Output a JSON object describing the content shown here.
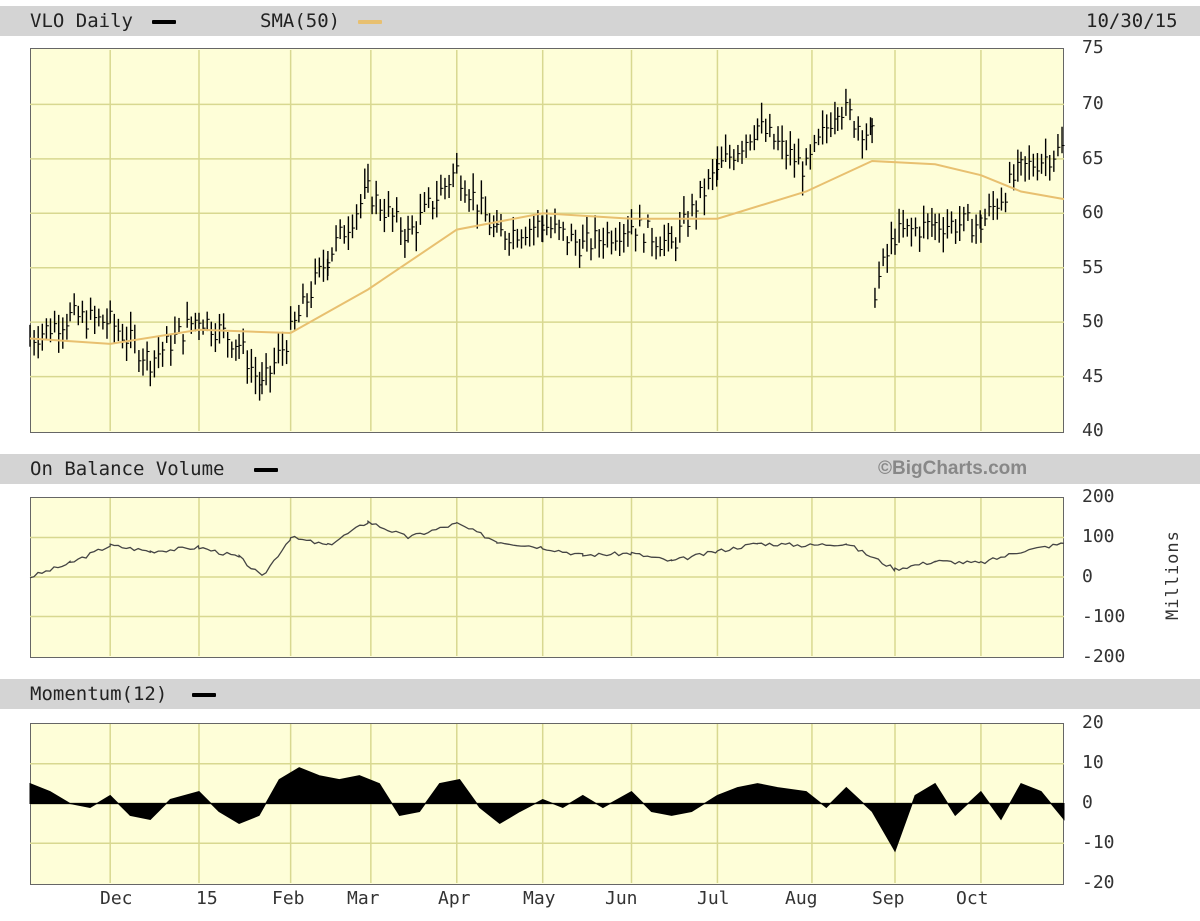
{
  "header": {
    "ticker_label": "VLO Daily",
    "sma_label": "SMA(50)",
    "date": "10/30/15",
    "colors": {
      "price": "#000000",
      "sma": "#e8c070"
    }
  },
  "obv_header": {
    "label": "On Balance Volume",
    "credit": "©BigCharts.com"
  },
  "momentum_header": {
    "label": "Momentum(12)"
  },
  "chart_data": [
    {
      "type": "line",
      "title": "VLO Daily",
      "subtype": "ohlc-bars",
      "ylim": [
        40,
        75
      ],
      "y_ticks": [
        "75",
        "70",
        "65",
        "60",
        "55",
        "50",
        "45",
        "40"
      ],
      "x_ticks": [
        "Dec",
        "15",
        "Feb",
        "Mar",
        "Apr",
        "May",
        "Jun",
        "Jul",
        "Aug",
        "Sep",
        "Oct"
      ],
      "grid": true,
      "series": [
        {
          "name": "VLO Daily",
          "x": [
            "2014-11-03",
            "2014-11-17",
            "2014-12-01",
            "2014-12-15",
            "2015-01-01",
            "2015-01-15",
            "2015-01-23",
            "2015-02-02",
            "2015-02-15",
            "2015-03-01",
            "2015-03-15",
            "2015-04-01",
            "2015-04-15",
            "2015-05-01",
            "2015-05-15",
            "2015-06-01",
            "2015-06-15",
            "2015-07-01",
            "2015-07-15",
            "2015-08-01",
            "2015-08-12",
            "2015-08-24",
            "2015-08-25",
            "2015-09-01",
            "2015-09-15",
            "2015-10-01",
            "2015-10-15",
            "2015-10-30"
          ],
          "values": [
            48.5,
            50.5,
            50,
            46.5,
            50.5,
            48,
            44,
            49,
            56,
            62,
            58,
            64,
            58,
            59,
            57,
            59,
            57,
            64,
            68,
            64,
            70,
            67,
            53,
            58,
            59,
            59,
            64,
            66
          ]
        },
        {
          "name": "SMA(50)",
          "x": [
            "2014-11-03",
            "2014-12-01",
            "2015-01-01",
            "2015-02-02",
            "2015-03-01",
            "2015-04-01",
            "2015-05-01",
            "2015-06-01",
            "2015-07-01",
            "2015-08-01",
            "2015-08-24",
            "2015-09-15",
            "2015-10-01",
            "2015-10-15",
            "2015-10-30"
          ],
          "values": [
            48.5,
            48,
            49.3,
            49,
            53,
            58.5,
            60,
            59.5,
            59.5,
            62,
            64.8,
            64.5,
            63.5,
            62,
            61.3
          ]
        }
      ]
    },
    {
      "type": "line",
      "title": "On Balance Volume",
      "ylim": [
        -200,
        200
      ],
      "y_ticks": [
        "200",
        "100",
        "0",
        "-100",
        "-200"
      ],
      "ylabel": "Millions",
      "grid": true,
      "series": [
        {
          "name": "On Balance Volume",
          "x": [
            "2014-11-03",
            "2014-11-17",
            "2014-12-01",
            "2014-12-15",
            "2015-01-01",
            "2015-01-15",
            "2015-01-23",
            "2015-02-02",
            "2015-02-15",
            "2015-03-01",
            "2015-03-15",
            "2015-04-01",
            "2015-04-15",
            "2015-05-01",
            "2015-05-15",
            "2015-06-01",
            "2015-06-15",
            "2015-07-01",
            "2015-07-15",
            "2015-08-01",
            "2015-08-15",
            "2015-09-01",
            "2015-09-15",
            "2015-10-01",
            "2015-10-15",
            "2015-10-30"
          ],
          "values": [
            0,
            35,
            80,
            65,
            75,
            50,
            0,
            100,
            80,
            140,
            100,
            135,
            90,
            75,
            55,
            60,
            40,
            65,
            85,
            80,
            85,
            20,
            40,
            35,
            65,
            85
          ]
        }
      ]
    },
    {
      "type": "area",
      "title": "Momentum(12)",
      "ylim": [
        -20,
        20
      ],
      "y_ticks": [
        "20",
        "10",
        "0",
        "-10",
        "-20"
      ],
      "grid": true,
      "series": [
        {
          "name": "Momentum(12)",
          "x": [
            "2014-11-03",
            "2014-11-10",
            "2014-11-17",
            "2014-11-24",
            "2014-12-01",
            "2014-12-08",
            "2014-12-15",
            "2014-12-22",
            "2015-01-01",
            "2015-01-08",
            "2015-01-15",
            "2015-01-22",
            "2015-01-29",
            "2015-02-05",
            "2015-02-12",
            "2015-02-19",
            "2015-02-26",
            "2015-03-05",
            "2015-03-12",
            "2015-03-19",
            "2015-03-26",
            "2015-04-02",
            "2015-04-09",
            "2015-04-16",
            "2015-04-23",
            "2015-05-01",
            "2015-05-08",
            "2015-05-15",
            "2015-05-22",
            "2015-06-01",
            "2015-06-08",
            "2015-06-15",
            "2015-06-22",
            "2015-07-01",
            "2015-07-08",
            "2015-07-15",
            "2015-07-22",
            "2015-08-01",
            "2015-08-08",
            "2015-08-15",
            "2015-08-24",
            "2015-09-01",
            "2015-09-08",
            "2015-09-15",
            "2015-09-22",
            "2015-10-01",
            "2015-10-08",
            "2015-10-15",
            "2015-10-22",
            "2015-10-30"
          ],
          "values": [
            5,
            3,
            0,
            -1,
            2,
            -3,
            -4,
            1,
            3,
            -2,
            -5,
            -3,
            6,
            9,
            7,
            6,
            7,
            5,
            -3,
            -2,
            5,
            6,
            -1,
            -5,
            -2,
            1,
            -1,
            2,
            -1,
            3,
            -2,
            -3,
            -2,
            2,
            4,
            5,
            4,
            3,
            -1,
            4,
            -2,
            -12,
            2,
            5,
            -3,
            3,
            -4,
            5,
            3,
            -4
          ]
        }
      ]
    }
  ]
}
